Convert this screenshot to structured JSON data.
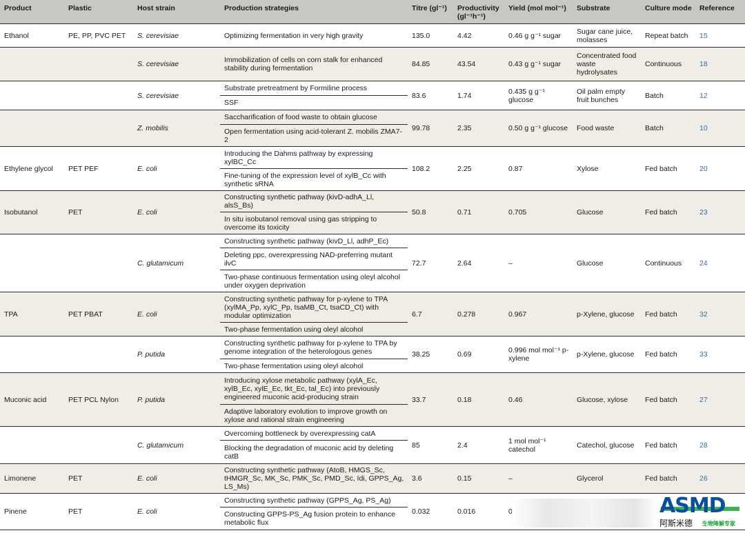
{
  "headers": {
    "product": "Product",
    "plastic": "Plastic",
    "host": "Host strain",
    "strategies": "Production strategies",
    "titre": "Titre (gl⁻¹)",
    "productivity": "Productivity (gl⁻¹h⁻¹)",
    "yield": "Yield (mol mol⁻¹)",
    "substrate": "Substrate",
    "culture": "Culture mode",
    "reference": "Reference"
  },
  "rows": {
    "ethanol1": {
      "product": "Ethanol",
      "plastic": "PE, PP, PVC PET",
      "host": "S. cerevisiae",
      "s1": "Optimizing fermentation in very high gravity",
      "titre": "135.0",
      "prod": "4.42",
      "yield": "0.46 g g⁻¹ sugar",
      "substrate": "Sugar cane juice, molasses",
      "culture": "Repeat batch",
      "ref": "15"
    },
    "ethanol2": {
      "host": "S. cerevisiae",
      "s1": "Immobilization of cells on corn stalk for enhanced stability during fermentation",
      "titre": "84.85",
      "prod": "43.54",
      "yield": "0.43 g g⁻¹ sugar",
      "substrate": "Concentrated food waste hydrolysates",
      "culture": "Continuous",
      "ref": "18"
    },
    "ethanol3": {
      "host": "S. cerevisiae",
      "s1": "Substrate pretreatment by Formiline process",
      "s2": "SSF",
      "titre": "83.6",
      "prod": "1.74",
      "yield": "0.435 g g⁻¹ glucose",
      "substrate": "Oil palm empty fruit bunches",
      "culture": "Batch",
      "ref": "12"
    },
    "ethanol4": {
      "host": "Z. mobilis",
      "s1": "Saccharification of food waste to obtain glucose",
      "s2": "Open fermentation using acid-tolerant Z. mobilis ZMA7-2",
      "titre": "99.78",
      "prod": "2.35",
      "yield": "0.50 g g⁻¹ glucose",
      "substrate": "Food waste",
      "culture": "Batch",
      "ref": "10"
    },
    "eg": {
      "product": "Ethylene glycol",
      "plastic": "PET PEF",
      "host": "E. coli",
      "s1": "Introducing the Dahms pathway by expressing xylBC_Cc",
      "s2": "Fine-tuning of the expression level of xylB_Cc with synthetic sRNA",
      "titre": "108.2",
      "prod": "2.25",
      "yield": "0.87",
      "substrate": "Xylose",
      "culture": "Fed batch",
      "ref": "20"
    },
    "isob1": {
      "product": "Isobutanol",
      "plastic": "PET",
      "host": "E. coli",
      "s1": "Constructing synthetic pathway (kivD-adhA_Ll, alsS_Bs)",
      "s2": "In situ isobutanol removal using gas stripping to overcome its toxicity",
      "titre": "50.8",
      "prod": "0.71",
      "yield": "0.705",
      "substrate": "Glucose",
      "culture": "Fed batch",
      "ref": "23"
    },
    "isob2": {
      "host": "C. glutamicum",
      "s1": "Constructing synthetic pathway (kivD_Ll, adhP_Ec)",
      "s2": "Deleting ppc, overexpressing NAD-preferring mutant ilvC",
      "s3": "Two-phase continuous fermentation using oleyl alcohol under oxygen deprivation",
      "titre": "72.7",
      "prod": "2.64",
      "yield": "–",
      "substrate": "Glucose",
      "culture": "Continuous",
      "ref": "24"
    },
    "tpa1": {
      "product": "TPA",
      "plastic": "PET PBAT",
      "host": "E. coli",
      "s1": "Constructing synthetic pathway for p-xylene to TPA (xylMA_Pp, xylC_Pp, tsaMB_Ct, tsaCD_Ct) with modular optimization",
      "s2": "Two-phase fermentation using oleyl alcohol",
      "titre": "6.7",
      "prod": "0.278",
      "yield": "0.967",
      "substrate": "p-Xylene, glucose",
      "culture": "Fed batch",
      "ref": "32"
    },
    "tpa2": {
      "host": "P. putida",
      "s1": "Constructing synthetic pathway for p-xylene to TPA by genome integration of the heterologous genes",
      "s2": "Two-phase fermentation using oleyl alcohol",
      "titre": "38.25",
      "prod": "0.69",
      "yield": "0.996 mol mol⁻¹ p-xylene",
      "substrate": "p-Xylene, glucose",
      "culture": "Fed batch",
      "ref": "33"
    },
    "muc1": {
      "product": "Muconic acid",
      "plastic": "PET PCL Nylon",
      "host": "P. putida",
      "s1": "Introducing xylose metabolic pathway (xylA_Ec, xylB_Ec, xylE_Ec, tkt_Ec, tal_Ec) into previously engineered muconic acid-producing strain",
      "s2": "Adaptive laboratory evolution to improve growth on xylose and rational strain engineering",
      "titre": "33.7",
      "prod": "0.18",
      "yield": "0.46",
      "substrate": "Glucose, xylose",
      "culture": "Fed batch",
      "ref": "27"
    },
    "muc2": {
      "host": "C. glutamicum",
      "s1": "Overcoming bottleneck by overexpressing catA",
      "s2": "Blocking the degradation of muconic acid by deleting catB",
      "titre": "85",
      "prod": "2.4",
      "yield": "1 mol mol⁻¹ catechol",
      "substrate": "Catechol, glucose",
      "culture": "Fed batch",
      "ref": "28"
    },
    "lim": {
      "product": "Limonene",
      "plastic": "PET",
      "host": "E. coli",
      "s1": "Constructing synthetic pathway (AtoB, HMGS_Sc, tHMGR_Sc, MK_Sc, PMK_Sc, PMD_Sc, Idi, GPPS_Ag, LS_Ms)",
      "titre": "3.6",
      "prod": "0.15",
      "yield": "–",
      "substrate": "Glycerol",
      "culture": "Fed batch",
      "ref": "26"
    },
    "pin": {
      "product": "Pinene",
      "plastic": "PET",
      "host": "E. coli",
      "s1": "Constructing synthetic pathway (GPPS_Ag, PS_Ag)",
      "s2": "Constructing GPPS-PS_Ag fusion protein to enhance metabolic flux",
      "titre": "0.032",
      "prod": "0.016",
      "yield": "0"
    }
  },
  "watermark": {
    "brand": "ASMD",
    "cn": "阿斯米德",
    "tagline": "生物降解专家"
  }
}
